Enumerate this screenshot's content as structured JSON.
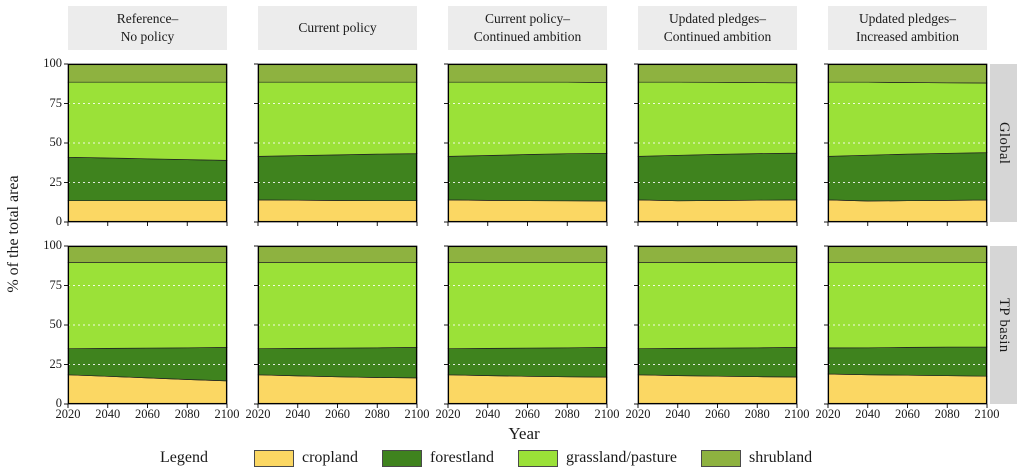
{
  "figure": {
    "y_axis_title": "% of the total area",
    "x_axis_title": "Year",
    "col_headers": [
      "Reference–\nNo policy",
      "Current policy",
      "Current policy–\nContinued ambition",
      "Updated pledges–\nContinued ambition",
      "Updated pledges–\nIncreased ambition"
    ],
    "row_labels": [
      "Global",
      "TP basin"
    ],
    "y_ticks": [
      0,
      25,
      50,
      75,
      100
    ],
    "header_bg": "#ececec",
    "strip_bg": "#d6d6d6"
  },
  "legend": {
    "title": "Legend",
    "items": [
      {
        "label": "cropland",
        "color": "#FBD763"
      },
      {
        "label": "forestland",
        "color": "#3F831E"
      },
      {
        "label": "grassland/pasture",
        "color": "#9BE138"
      },
      {
        "label": "shrubland",
        "color": "#8EB240"
      }
    ]
  },
  "chart_data": {
    "type": "area",
    "stacked": true,
    "title": "",
    "xlabel": "Year",
    "ylabel": "% of the total area",
    "x": [
      2020,
      2040,
      2060,
      2080,
      2100
    ],
    "xlim": [
      2020,
      2100
    ],
    "ylim": [
      0,
      100
    ],
    "y_gridlines": [
      25,
      50,
      75
    ],
    "grid_style": "white-dashed",
    "stack_order": [
      "cropland",
      "forestland",
      "grassland/pasture",
      "shrubland"
    ],
    "rows": [
      "Global",
      "TP basin"
    ],
    "columns": [
      "Reference–No policy",
      "Current policy",
      "Current policy–Continued ambition",
      "Updated pledges–Continued ambition",
      "Updated pledges–Increased ambition"
    ],
    "panels": [
      {
        "row": "Global",
        "column": "Reference–No policy",
        "series": {
          "cropland": [
            13.5,
            13.5,
            13.5,
            13.5,
            13.5
          ],
          "forestland": [
            27.5,
            27.0,
            26.5,
            26.0,
            25.5
          ],
          "grassland/pasture": [
            47.5,
            48.0,
            48.5,
            49.0,
            49.5
          ],
          "shrubland": [
            11.5,
            11.5,
            11.5,
            11.5,
            11.5
          ]
        }
      },
      {
        "row": "Global",
        "column": "Current policy",
        "series": {
          "cropland": [
            14.0,
            13.8,
            13.6,
            13.5,
            13.5
          ],
          "forestland": [
            27.5,
            28.2,
            28.9,
            29.5,
            29.8
          ],
          "grassland/pasture": [
            47.0,
            46.5,
            46.0,
            45.5,
            45.2
          ],
          "shrubland": [
            11.5,
            11.5,
            11.5,
            11.5,
            11.5
          ]
        }
      },
      {
        "row": "Global",
        "column": "Current policy–Continued ambition",
        "series": {
          "cropland": [
            14.0,
            13.7,
            13.5,
            13.4,
            13.3
          ],
          "forestland": [
            27.5,
            28.4,
            29.2,
            29.8,
            30.2
          ],
          "grassland/pasture": [
            47.0,
            46.4,
            45.8,
            45.3,
            44.8
          ],
          "shrubland": [
            11.5,
            11.5,
            11.5,
            11.5,
            11.7
          ]
        }
      },
      {
        "row": "Global",
        "column": "Updated pledges–Continued ambition",
        "series": {
          "cropland": [
            14.0,
            13.4,
            13.6,
            13.8,
            14.0
          ],
          "forestland": [
            27.5,
            28.8,
            29.2,
            29.5,
            29.6
          ],
          "grassland/pasture": [
            47.0,
            46.3,
            45.6,
            44.9,
            44.5
          ],
          "shrubland": [
            11.5,
            11.5,
            11.6,
            11.8,
            11.9
          ]
        }
      },
      {
        "row": "Global",
        "column": "Updated pledges–Increased ambition",
        "series": {
          "cropland": [
            14.0,
            13.3,
            13.5,
            13.7,
            13.9
          ],
          "forestland": [
            27.5,
            29.0,
            29.5,
            29.8,
            30.0
          ],
          "grassland/pasture": [
            47.0,
            46.2,
            45.3,
            44.6,
            44.1
          ],
          "shrubland": [
            11.5,
            11.5,
            11.7,
            11.9,
            12.0
          ]
        }
      },
      {
        "row": "TP basin",
        "column": "Reference–No policy",
        "series": {
          "cropland": [
            18.5,
            17.5,
            16.5,
            15.5,
            14.6
          ],
          "forestland": [
            16.5,
            17.7,
            18.9,
            20.1,
            21.2
          ],
          "grassland/pasture": [
            54.5,
            54.3,
            54.1,
            53.9,
            53.7
          ],
          "shrubland": [
            10.5,
            10.5,
            10.5,
            10.5,
            10.5
          ]
        }
      },
      {
        "row": "TP basin",
        "column": "Current policy",
        "series": {
          "cropland": [
            18.5,
            17.8,
            17.2,
            16.8,
            16.5
          ],
          "forestland": [
            16.5,
            17.4,
            18.2,
            18.8,
            19.3
          ],
          "grassland/pasture": [
            54.5,
            54.3,
            54.1,
            53.9,
            53.7
          ],
          "shrubland": [
            10.5,
            10.5,
            10.5,
            10.5,
            10.5
          ]
        }
      },
      {
        "row": "TP basin",
        "column": "Current policy–Continued ambition",
        "series": {
          "cropland": [
            18.5,
            18.0,
            17.5,
            17.2,
            17.0
          ],
          "forestland": [
            16.5,
            17.2,
            17.9,
            18.4,
            18.8
          ],
          "grassland/pasture": [
            54.5,
            54.3,
            54.1,
            53.9,
            53.7
          ],
          "shrubland": [
            10.5,
            10.5,
            10.5,
            10.5,
            10.5
          ]
        }
      },
      {
        "row": "TP basin",
        "column": "Updated pledges–Continued ambition",
        "series": {
          "cropland": [
            18.5,
            18.0,
            17.6,
            17.3,
            17.1
          ],
          "forestland": [
            16.5,
            17.2,
            17.8,
            18.3,
            18.7
          ],
          "grassland/pasture": [
            54.5,
            54.3,
            54.2,
            54.0,
            53.8
          ],
          "shrubland": [
            10.5,
            10.5,
            10.5,
            10.5,
            10.5
          ]
        }
      },
      {
        "row": "TP basin",
        "column": "Updated pledges–Increased ambition",
        "series": {
          "cropland": [
            19.0,
            18.5,
            18.2,
            17.9,
            17.6
          ],
          "forestland": [
            16.5,
            17.1,
            17.6,
            18.1,
            18.5
          ],
          "grassland/pasture": [
            54.0,
            53.9,
            53.7,
            53.5,
            53.4
          ],
          "shrubland": [
            10.5,
            10.5,
            10.5,
            10.5,
            10.5
          ]
        }
      }
    ]
  }
}
